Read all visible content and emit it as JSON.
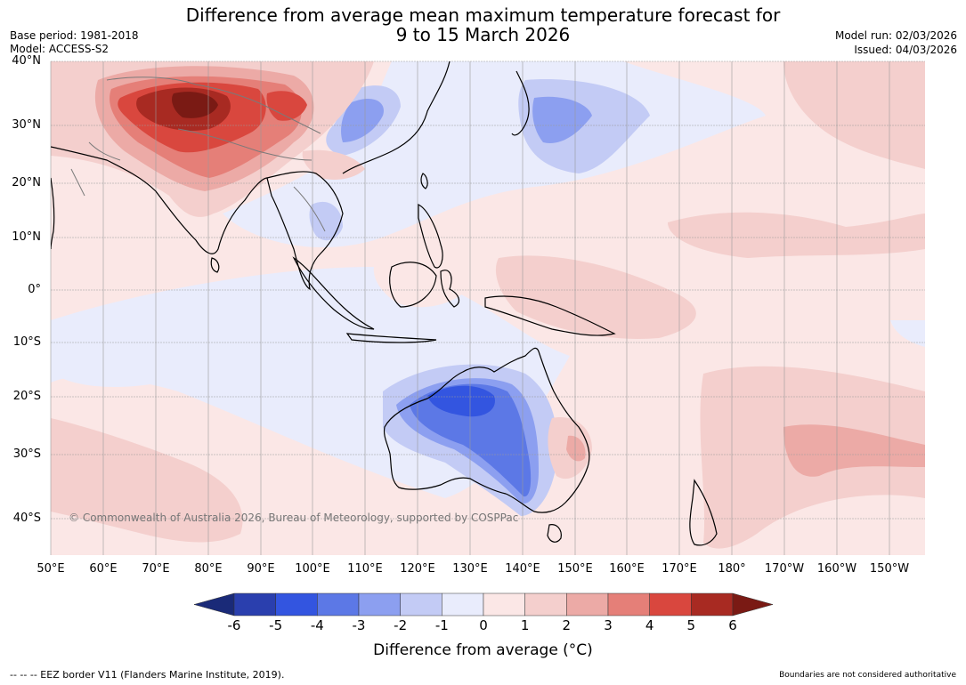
{
  "title": {
    "line1": "Difference from average mean maximum temperature forecast for",
    "line2": "9 to 15 March 2026"
  },
  "meta": {
    "base_period": "Base period: 1981-2018",
    "model": "Model: ACCESS-S2",
    "model_run": "Model run: 02/03/2026",
    "issued": "Issued: 04/03/2026"
  },
  "map": {
    "lat_labels": [
      "40°N",
      "30°N",
      "20°N",
      "10°N",
      "0°",
      "10°S",
      "20°S",
      "30°S",
      "40°S"
    ],
    "lon_labels": [
      "50°E",
      "60°E",
      "70°E",
      "80°E",
      "90°E",
      "100°E",
      "110°E",
      "120°E",
      "130°E",
      "140°E",
      "150°E",
      "160°E",
      "170°E",
      "180°",
      "170°W",
      "160°W",
      "150°W"
    ],
    "copyright": "© Commonwealth of Australia 2026, Bureau of Meteorology, supported by COSPPac"
  },
  "legend": {
    "title": "Difference from average (°C)",
    "ticks": [
      "-6",
      "-5",
      "-4",
      "-3",
      "-2",
      "-1",
      "0",
      "1",
      "2",
      "3",
      "4",
      "5",
      "6"
    ],
    "colors": [
      "#1a2a78",
      "#2a3fae",
      "#3355e0",
      "#5c78e6",
      "#8c9ff0",
      "#c3cbf5",
      "#e9ecfc",
      "#fbe7e6",
      "#f4cfcd",
      "#ecaaa6",
      "#e57f78",
      "#d9473e",
      "#a82a22",
      "#7a1a14"
    ]
  },
  "footer": {
    "eez": "--  --  -- EEZ border V11 (Flanders Marine Institute, 2019).",
    "disclaimer": "Boundaries are not considered authoritative"
  }
}
